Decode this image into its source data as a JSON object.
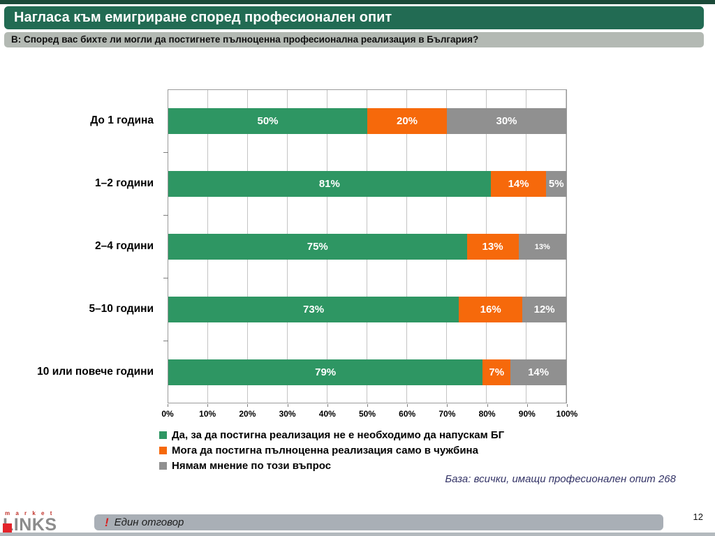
{
  "slide": {
    "title": "Нагласа към емигриране според професионален опит",
    "question": "В: Според вас бихте ли могли да постигнете пълноценна професионална реализация в България?",
    "base_note": "База: всички, имащи професионален опит 268",
    "page_number": "12"
  },
  "theme": {
    "header_green": "#226B53",
    "header_strip": "#1B4A39",
    "subtitle_gray": "#B3B9B3",
    "footer_bar": "#A9AFB6",
    "note_color": "#333366",
    "alert_red": "#D91E1E"
  },
  "chart_data": {
    "type": "bar",
    "orientation": "horizontal_stacked",
    "unit": "%",
    "title": "Нагласа към емигриране според професионален опит",
    "categories": [
      "До 1 година",
      "1–2 години",
      "2–4 години",
      "5–10 години",
      "10 или повече години"
    ],
    "series": [
      {
        "name": "Да, за да постигна реализация не е необходимо да напускам БГ",
        "color": "#2E9663",
        "values": [
          50,
          81,
          75,
          73,
          79
        ]
      },
      {
        "name": "Мога да постигна пълноценна реализация само в чужбина",
        "color": "#F6690B",
        "values": [
          20,
          14,
          13,
          16,
          7
        ]
      },
      {
        "name": "Нямам мнение по този въпрос",
        "color": "#909090",
        "values": [
          30,
          5,
          13,
          12,
          14
        ]
      }
    ],
    "x_ticks": [
      "0%",
      "10%",
      "20%",
      "30%",
      "40%",
      "50%",
      "60%",
      "70%",
      "80%",
      "90%",
      "100%"
    ],
    "xlim": [
      0,
      100
    ],
    "grid": true,
    "legend_position": "bottom-left",
    "small_value_labels": [
      {
        "row": 2,
        "series": 2
      }
    ]
  },
  "footer": {
    "logo_line1": "m a r k e t",
    "logo_line2": "LINKS",
    "note_mark": "!",
    "note_text": "Един отговор"
  }
}
